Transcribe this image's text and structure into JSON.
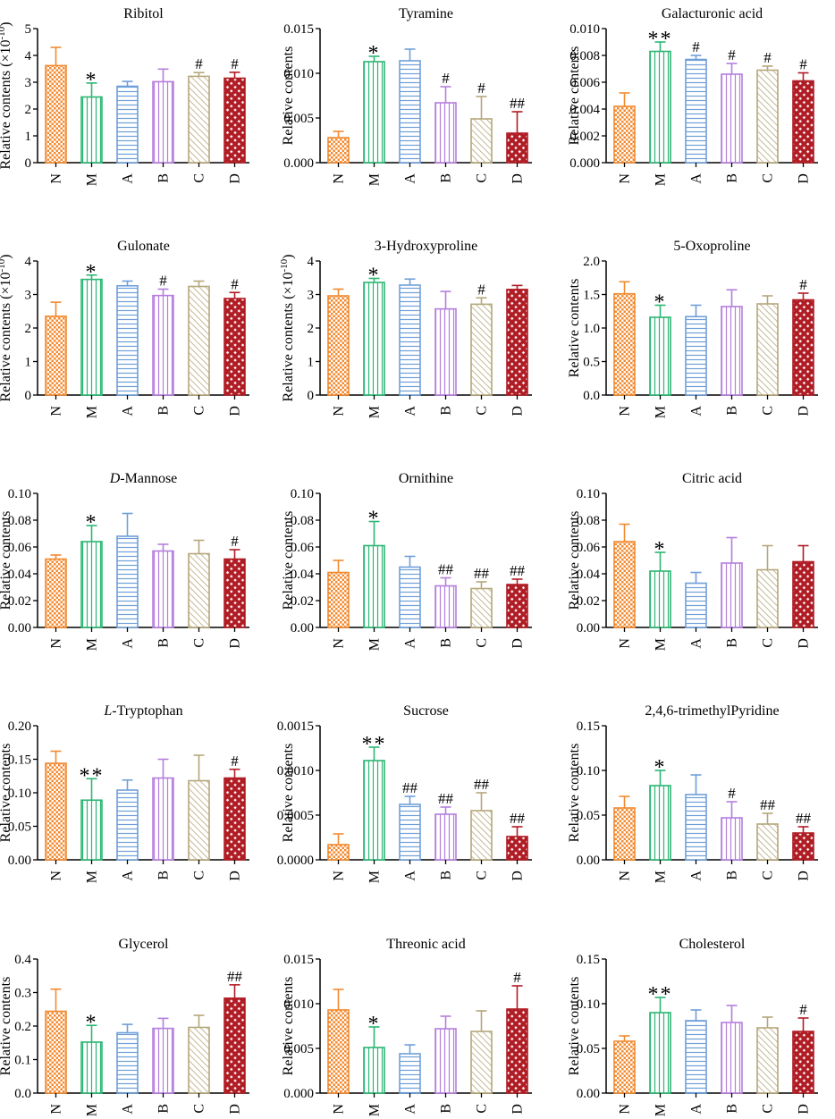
{
  "figure": {
    "groups": [
      "N",
      "M",
      "A",
      "B",
      "C",
      "D"
    ],
    "group_colors": [
      "#F28A30",
      "#2BB673",
      "#6F9FD8",
      "#B57EDC",
      "#B5A77A",
      "#B01C24"
    ],
    "group_patterns": [
      "checker",
      "vstripe",
      "hstripe",
      "vstripe",
      "diag",
      "crosshatch"
    ]
  },
  "chart_data": [
    {
      "type": "bar",
      "title": "Ribitol",
      "title_parts": [
        {
          "t": "Ribitol",
          "i": false
        }
      ],
      "ylabel": "Relative contents (×10",
      "ylabel_exp": "-10",
      "ylabel_close": ")",
      "categories": [
        "N",
        "M",
        "A",
        "B",
        "C",
        "D"
      ],
      "ylim": [
        0,
        5
      ],
      "yticks": [
        {
          "v": 0,
          "label": "0"
        },
        {
          "v": 1,
          "label": "1"
        },
        {
          "v": 2,
          "label": "2"
        },
        {
          "v": 3,
          "label": "3"
        },
        {
          "v": 4,
          "label": "4"
        },
        {
          "v": 5,
          "label": "5"
        }
      ],
      "values": [
        3.62,
        2.45,
        2.85,
        3.02,
        3.22,
        3.15
      ],
      "errors": [
        0.68,
        0.52,
        0.18,
        0.47,
        0.14,
        0.22
      ],
      "marks": [
        "",
        "*",
        "",
        "",
        "#",
        "#"
      ]
    },
    {
      "type": "bar",
      "title": "Tyramine",
      "title_parts": [
        {
          "t": "Tyramine",
          "i": false
        }
      ],
      "ylabel": "Relative contents",
      "categories": [
        "N",
        "M",
        "A",
        "B",
        "C",
        "D"
      ],
      "ylim": [
        0,
        0.015
      ],
      "yticks": [
        {
          "v": 0,
          "label": "0.000"
        },
        {
          "v": 0.005,
          "label": "0.005"
        },
        {
          "v": 0.01,
          "label": "0.010"
        },
        {
          "v": 0.015,
          "label": "0.015"
        }
      ],
      "values": [
        0.0028,
        0.0113,
        0.0114,
        0.0067,
        0.0049,
        0.0033
      ],
      "errors": [
        0.0007,
        0.0006,
        0.0013,
        0.0018,
        0.0025,
        0.0024
      ],
      "marks": [
        "",
        "*",
        "",
        "#",
        "#",
        "##"
      ]
    },
    {
      "type": "bar",
      "title": "Galacturonic acid",
      "title_parts": [
        {
          "t": "Galacturonic acid",
          "i": false
        }
      ],
      "ylabel": "Relative contents",
      "categories": [
        "N",
        "M",
        "A",
        "B",
        "C",
        "D"
      ],
      "ylim": [
        0,
        0.01
      ],
      "yticks": [
        {
          "v": 0,
          "label": "0.000"
        },
        {
          "v": 0.002,
          "label": "0.002"
        },
        {
          "v": 0.004,
          "label": "0.004"
        },
        {
          "v": 0.006,
          "label": "0.006"
        },
        {
          "v": 0.008,
          "label": "0.008"
        },
        {
          "v": 0.01,
          "label": "0.010"
        }
      ],
      "values": [
        0.0042,
        0.0083,
        0.0077,
        0.0066,
        0.0069,
        0.0061
      ],
      "errors": [
        0.001,
        0.0007,
        0.0003,
        0.0008,
        0.0003,
        0.0006
      ],
      "marks": [
        "",
        "**",
        "#",
        "#",
        "#",
        "#"
      ]
    },
    {
      "type": "bar",
      "title": "Gulonate",
      "title_parts": [
        {
          "t": "Gulonate",
          "i": false
        }
      ],
      "ylabel": "Relative contents (×10",
      "ylabel_exp": "-10",
      "ylabel_close": ")",
      "categories": [
        "N",
        "M",
        "A",
        "B",
        "C",
        "D"
      ],
      "ylim": [
        0,
        4
      ],
      "yticks": [
        {
          "v": 0,
          "label": "0"
        },
        {
          "v": 1,
          "label": "1"
        },
        {
          "v": 2,
          "label": "2"
        },
        {
          "v": 3,
          "label": "3"
        },
        {
          "v": 4,
          "label": "4"
        }
      ],
      "values": [
        2.35,
        3.45,
        3.26,
        2.97,
        3.24,
        2.88
      ],
      "errors": [
        0.42,
        0.13,
        0.14,
        0.19,
        0.16,
        0.18
      ],
      "marks": [
        "",
        "*",
        "",
        "#",
        "",
        "#"
      ]
    },
    {
      "type": "bar",
      "title": "3-Hydroxyproline",
      "title_parts": [
        {
          "t": "3-Hydroxyproline",
          "i": false
        }
      ],
      "ylabel": "Relative contents (×10",
      "ylabel_exp": "-10",
      "ylabel_close": ")",
      "categories": [
        "N",
        "M",
        "A",
        "B",
        "C",
        "D"
      ],
      "ylim": [
        0,
        4
      ],
      "yticks": [
        {
          "v": 0,
          "label": "0"
        },
        {
          "v": 1,
          "label": "1"
        },
        {
          "v": 2,
          "label": "2"
        },
        {
          "v": 3,
          "label": "3"
        },
        {
          "v": 4,
          "label": "4"
        }
      ],
      "values": [
        2.96,
        3.36,
        3.28,
        2.57,
        2.71,
        3.15
      ],
      "errors": [
        0.2,
        0.12,
        0.18,
        0.52,
        0.19,
        0.12
      ],
      "marks": [
        "",
        "*",
        "",
        "",
        "#",
        ""
      ]
    },
    {
      "type": "bar",
      "title": "5-Oxoproline",
      "title_parts": [
        {
          "t": "5-Oxoproline",
          "i": false
        }
      ],
      "ylabel": "Relative contents",
      "categories": [
        "N",
        "M",
        "A",
        "B",
        "C",
        "D"
      ],
      "ylim": [
        0,
        2
      ],
      "yticks": [
        {
          "v": 0,
          "label": "0.0"
        },
        {
          "v": 0.5,
          "label": "0.5"
        },
        {
          "v": 1,
          "label": "1.0"
        },
        {
          "v": 1.5,
          "label": "1.5"
        },
        {
          "v": 2,
          "label": "2.0"
        }
      ],
      "values": [
        1.51,
        1.16,
        1.17,
        1.32,
        1.36,
        1.42
      ],
      "errors": [
        0.18,
        0.18,
        0.17,
        0.25,
        0.12,
        0.1
      ],
      "marks": [
        "",
        "*",
        "",
        "",
        "",
        "#"
      ]
    },
    {
      "type": "bar",
      "title": "D-Mannose",
      "title_parts": [
        {
          "t": "D",
          "i": true
        },
        {
          "t": "-Mannose",
          "i": false
        }
      ],
      "ylabel": "Relative contents",
      "categories": [
        "N",
        "M",
        "A",
        "B",
        "C",
        "D"
      ],
      "ylim": [
        0,
        0.1
      ],
      "yticks": [
        {
          "v": 0,
          "label": "0.00"
        },
        {
          "v": 0.02,
          "label": "0.02"
        },
        {
          "v": 0.04,
          "label": "0.04"
        },
        {
          "v": 0.06,
          "label": "0.06"
        },
        {
          "v": 0.08,
          "label": "0.08"
        },
        {
          "v": 0.1,
          "label": "0.10"
        }
      ],
      "values": [
        0.051,
        0.064,
        0.068,
        0.057,
        0.055,
        0.051
      ],
      "errors": [
        0.003,
        0.012,
        0.017,
        0.005,
        0.01,
        0.007
      ],
      "marks": [
        "",
        "*",
        "",
        "",
        "",
        "#"
      ]
    },
    {
      "type": "bar",
      "title": "Ornithine",
      "title_parts": [
        {
          "t": "Ornithine",
          "i": false
        }
      ],
      "ylabel": "Relative contents",
      "categories": [
        "N",
        "M",
        "A",
        "B",
        "C",
        "D"
      ],
      "ylim": [
        0,
        0.1
      ],
      "yticks": [
        {
          "v": 0,
          "label": "0.00"
        },
        {
          "v": 0.02,
          "label": "0.02"
        },
        {
          "v": 0.04,
          "label": "0.04"
        },
        {
          "v": 0.06,
          "label": "0.06"
        },
        {
          "v": 0.08,
          "label": "0.08"
        },
        {
          "v": 0.1,
          "label": "0.10"
        }
      ],
      "values": [
        0.041,
        0.061,
        0.045,
        0.031,
        0.029,
        0.032
      ],
      "errors": [
        0.009,
        0.018,
        0.008,
        0.006,
        0.005,
        0.004
      ],
      "marks": [
        "",
        "*",
        "",
        "##",
        "##",
        "##"
      ]
    },
    {
      "type": "bar",
      "title": "Citric acid",
      "title_parts": [
        {
          "t": "Citric acid",
          "i": false
        }
      ],
      "ylabel": "Relative contents",
      "categories": [
        "N",
        "M",
        "A",
        "B",
        "C",
        "D"
      ],
      "ylim": [
        0,
        0.1
      ],
      "yticks": [
        {
          "v": 0,
          "label": "0.00"
        },
        {
          "v": 0.02,
          "label": "0.02"
        },
        {
          "v": 0.04,
          "label": "0.04"
        },
        {
          "v": 0.06,
          "label": "0.06"
        },
        {
          "v": 0.08,
          "label": "0.08"
        },
        {
          "v": 0.1,
          "label": "0.10"
        }
      ],
      "values": [
        0.064,
        0.042,
        0.033,
        0.048,
        0.043,
        0.049
      ],
      "errors": [
        0.013,
        0.014,
        0.008,
        0.019,
        0.018,
        0.012
      ],
      "marks": [
        "",
        "*",
        "",
        "",
        "",
        ""
      ]
    },
    {
      "type": "bar",
      "title": "L-Tryptophan",
      "title_parts": [
        {
          "t": "L",
          "i": true
        },
        {
          "t": "-Tryptophan",
          "i": false
        }
      ],
      "ylabel": "Relative contents",
      "categories": [
        "N",
        "M",
        "A",
        "B",
        "C",
        "D"
      ],
      "ylim": [
        0,
        0.2
      ],
      "yticks": [
        {
          "v": 0,
          "label": "0.00"
        },
        {
          "v": 0.05,
          "label": "0.05"
        },
        {
          "v": 0.1,
          "label": "0.10"
        },
        {
          "v": 0.15,
          "label": "0.15"
        },
        {
          "v": 0.2,
          "label": "0.20"
        }
      ],
      "values": [
        0.144,
        0.089,
        0.104,
        0.122,
        0.118,
        0.122
      ],
      "errors": [
        0.018,
        0.032,
        0.015,
        0.028,
        0.038,
        0.013
      ],
      "marks": [
        "",
        "**",
        "",
        "",
        "",
        "#"
      ]
    },
    {
      "type": "bar",
      "title": "Sucrose",
      "title_parts": [
        {
          "t": "Sucrose",
          "i": false
        }
      ],
      "ylabel": "Relative contents",
      "categories": [
        "N",
        "M",
        "A",
        "B",
        "C",
        "D"
      ],
      "ylim": [
        0,
        0.0015
      ],
      "yticks": [
        {
          "v": 0,
          "label": "0.0000"
        },
        {
          "v": 0.0005,
          "label": "0.0005"
        },
        {
          "v": 0.001,
          "label": "0.0010"
        },
        {
          "v": 0.0015,
          "label": "0.0015"
        }
      ],
      "values": [
        0.00017,
        0.00111,
        0.00062,
        0.00051,
        0.00055,
        0.00026
      ],
      "errors": [
        0.00012,
        0.00015,
        9e-05,
        8e-05,
        0.0002,
        0.00011
      ],
      "marks": [
        "",
        "**",
        "##",
        "##",
        "##",
        "##"
      ]
    },
    {
      "type": "bar",
      "title": "2,4,6-trimethylPyridine",
      "title_parts": [
        {
          "t": "2,4,6-trimethylPyridine",
          "i": false
        }
      ],
      "ylabel": "Relative contents",
      "categories": [
        "N",
        "M",
        "A",
        "B",
        "C",
        "D"
      ],
      "ylim": [
        0,
        0.15
      ],
      "yticks": [
        {
          "v": 0,
          "label": "0.00"
        },
        {
          "v": 0.05,
          "label": "0.05"
        },
        {
          "v": 0.1,
          "label": "0.10"
        },
        {
          "v": 0.15,
          "label": "0.15"
        }
      ],
      "values": [
        0.058,
        0.083,
        0.073,
        0.047,
        0.04,
        0.03
      ],
      "errors": [
        0.013,
        0.017,
        0.022,
        0.018,
        0.012,
        0.007
      ],
      "marks": [
        "",
        "*",
        "",
        "#",
        "##",
        "##"
      ]
    },
    {
      "type": "bar",
      "title": "Glycerol",
      "title_parts": [
        {
          "t": "Glycerol",
          "i": false
        }
      ],
      "ylabel": "Relative contents",
      "categories": [
        "N",
        "M",
        "A",
        "B",
        "C",
        "D"
      ],
      "ylim": [
        0,
        0.4
      ],
      "yticks": [
        {
          "v": 0,
          "label": "0.0"
        },
        {
          "v": 0.1,
          "label": "0.1"
        },
        {
          "v": 0.2,
          "label": "0.2"
        },
        {
          "v": 0.3,
          "label": "0.3"
        },
        {
          "v": 0.4,
          "label": "0.4"
        }
      ],
      "values": [
        0.244,
        0.152,
        0.18,
        0.193,
        0.196,
        0.283
      ],
      "errors": [
        0.066,
        0.05,
        0.025,
        0.03,
        0.036,
        0.04
      ],
      "marks": [
        "",
        "*",
        "",
        "",
        "",
        "##"
      ]
    },
    {
      "type": "bar",
      "title": "Threonic acid",
      "title_parts": [
        {
          "t": "Threonic acid",
          "i": false
        }
      ],
      "ylabel": "Relative contents",
      "categories": [
        "N",
        "M",
        "A",
        "B",
        "C",
        "D"
      ],
      "ylim": [
        0,
        0.015
      ],
      "yticks": [
        {
          "v": 0,
          "label": "0.000"
        },
        {
          "v": 0.005,
          "label": "0.005"
        },
        {
          "v": 0.01,
          "label": "0.010"
        },
        {
          "v": 0.015,
          "label": "0.015"
        }
      ],
      "values": [
        0.0093,
        0.0051,
        0.0044,
        0.0072,
        0.0069,
        0.0094
      ],
      "errors": [
        0.0023,
        0.0023,
        0.001,
        0.0014,
        0.0023,
        0.0026
      ],
      "marks": [
        "",
        "*",
        "",
        "",
        "",
        "#"
      ]
    },
    {
      "type": "bar",
      "title": "Cholesterol",
      "title_parts": [
        {
          "t": "Cholesterol",
          "i": false
        }
      ],
      "ylabel": "Relative contents",
      "categories": [
        "N",
        "M",
        "A",
        "B",
        "C",
        "D"
      ],
      "ylim": [
        0,
        0.15
      ],
      "yticks": [
        {
          "v": 0,
          "label": "0.00"
        },
        {
          "v": 0.05,
          "label": "0.05"
        },
        {
          "v": 0.1,
          "label": "0.10"
        },
        {
          "v": 0.15,
          "label": "0.15"
        }
      ],
      "values": [
        0.058,
        0.09,
        0.081,
        0.079,
        0.073,
        0.069
      ],
      "errors": [
        0.006,
        0.017,
        0.012,
        0.019,
        0.012,
        0.015
      ],
      "marks": [
        "",
        "**",
        "",
        "",
        "",
        "#"
      ]
    }
  ]
}
